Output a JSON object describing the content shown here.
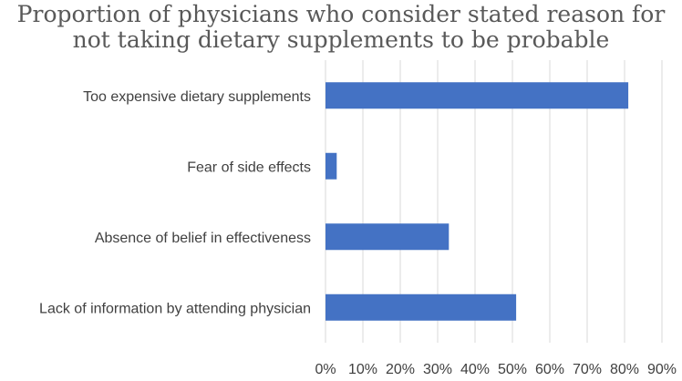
{
  "chart_data": {
    "type": "bar",
    "orientation": "horizontal",
    "title_lines": [
      "Proportion of physicians who consider stated reason for",
      "not taking dietary supplements to be probable"
    ],
    "categories": [
      "Too expensive dietary supplements",
      "Fear of side effects",
      "Absence  of belief in effectiveness",
      "Lack of information by attending physician"
    ],
    "values": [
      81,
      3,
      33,
      51
    ],
    "xlim": [
      0,
      90
    ],
    "x_ticks": [
      0,
      10,
      20,
      30,
      40,
      50,
      60,
      70,
      80,
      90
    ],
    "x_tick_labels": [
      "0%",
      "10%",
      "20%",
      "30%",
      "40%",
      "50%",
      "60%",
      "70%",
      "80%",
      "90%"
    ],
    "unit": "%",
    "grid": true,
    "legend": "none",
    "colors": {
      "bar": "#4472c4",
      "grid": "#d9d9d9",
      "text": "#404040",
      "title": "#595959"
    }
  }
}
